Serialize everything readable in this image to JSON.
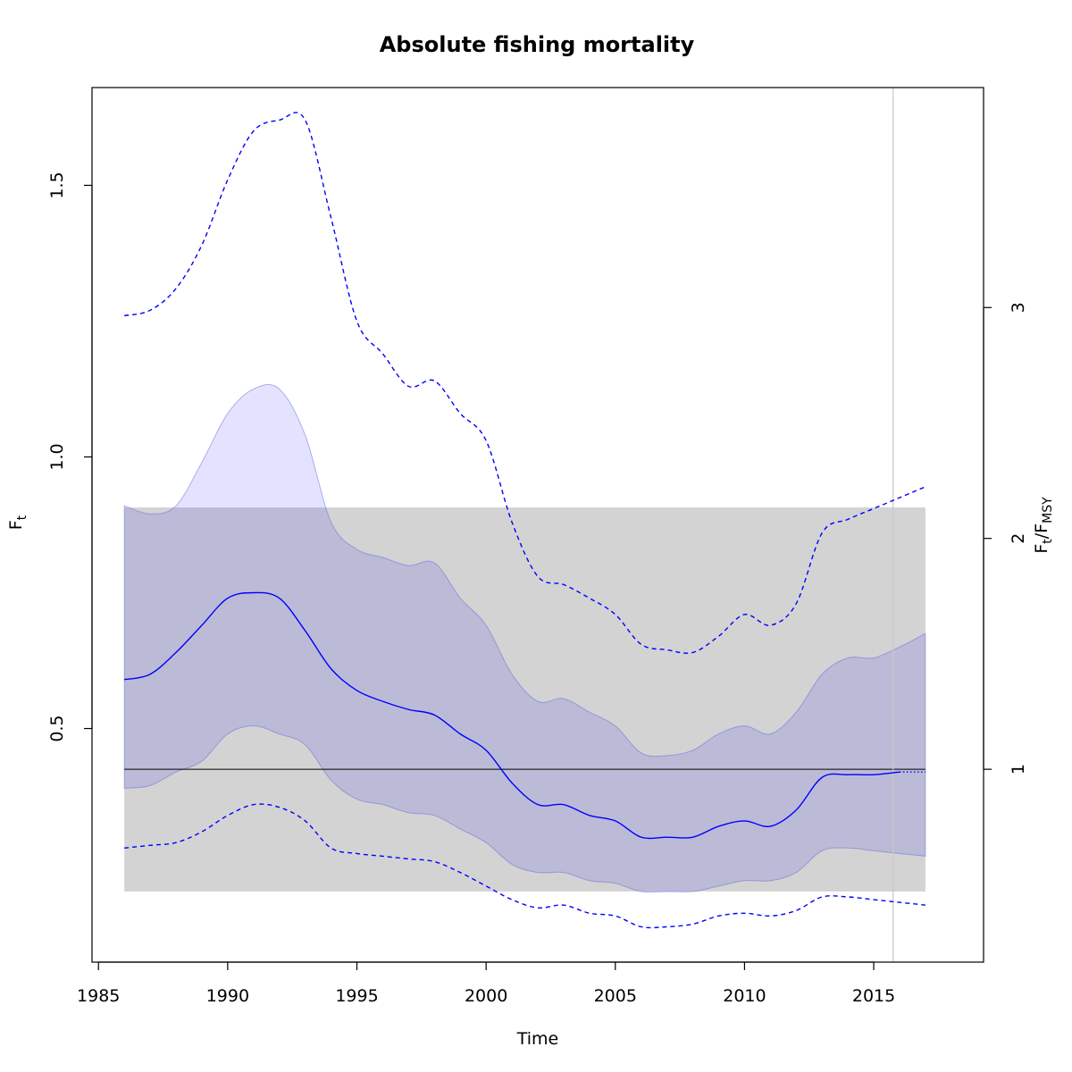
{
  "chart_data": {
    "type": "line",
    "title": "Absolute fishing mortality",
    "xlabel": "Time",
    "ylabel_base": "F",
    "ylabel_sub": "t",
    "y2label_base": "F",
    "y2label_sub1": "t",
    "y2label_sep": "/F",
    "y2label_sub2": "MSY",
    "xlim": [
      1984.75,
      2019.25
    ],
    "ylim": [
      0.07,
      1.68
    ],
    "x_ticks": [
      {
        "value": 1985,
        "label": "1985"
      },
      {
        "value": 1990,
        "label": "1990"
      },
      {
        "value": 1995,
        "label": "1995"
      },
      {
        "value": 2000,
        "label": "2000"
      },
      {
        "value": 2005,
        "label": "2005"
      },
      {
        "value": 2010,
        "label": "2010"
      },
      {
        "value": 2015,
        "label": "2015"
      }
    ],
    "y_ticks": [
      {
        "value": 0.5,
        "label": "0.5"
      },
      {
        "value": 1.0,
        "label": "1.0"
      },
      {
        "value": 1.5,
        "label": "1.5"
      }
    ],
    "y2_ticks": [
      {
        "value": 1,
        "label": "1"
      },
      {
        "value": 2,
        "label": "2"
      },
      {
        "value": 3,
        "label": "3"
      }
    ],
    "fmsy": 0.425,
    "fmsy_band": {
      "x": [
        1986,
        2017
      ],
      "lower": 0.2,
      "upper": 0.907,
      "color": "#d3d3d3"
    },
    "vline_x": 2015.75,
    "last_observed_x": 2016,
    "x": [
      1986,
      1987,
      1988,
      1989,
      1990,
      1991,
      1992,
      1993,
      1994,
      1995,
      1996,
      1997,
      1998,
      1999,
      2000,
      2001,
      2002,
      2003,
      2004,
      2005,
      2006,
      2007,
      2008,
      2009,
      2010,
      2011,
      2012,
      2013,
      2014,
      2015,
      2016,
      2017
    ],
    "series": [
      {
        "name": "F",
        "color": "#0000ff",
        "values": [
          0.59,
          0.6,
          0.64,
          0.69,
          0.74,
          0.75,
          0.74,
          0.68,
          0.61,
          0.57,
          0.55,
          0.535,
          0.525,
          0.49,
          0.46,
          0.4,
          0.36,
          0.36,
          0.34,
          0.33,
          0.3,
          0.3,
          0.3,
          0.32,
          0.33,
          0.32,
          0.35,
          0.41,
          0.415,
          0.415,
          0.42,
          0.42
        ]
      },
      {
        "name": "F lower CI",
        "color": "#0000ff",
        "values": [
          0.28,
          0.285,
          0.29,
          0.31,
          0.34,
          0.36,
          0.355,
          0.33,
          0.28,
          0.27,
          0.265,
          0.26,
          0.255,
          0.235,
          0.21,
          0.185,
          0.17,
          0.175,
          0.16,
          0.155,
          0.135,
          0.135,
          0.14,
          0.155,
          0.16,
          0.155,
          0.165,
          0.19,
          0.19,
          0.185,
          0.18,
          0.175
        ]
      },
      {
        "name": "F upper CI",
        "color": "#0000ff",
        "values": [
          1.26,
          1.27,
          1.31,
          1.39,
          1.51,
          1.6,
          1.62,
          1.62,
          1.44,
          1.25,
          1.19,
          1.13,
          1.14,
          1.08,
          1.03,
          0.88,
          0.78,
          0.765,
          0.74,
          0.71,
          0.655,
          0.645,
          0.64,
          0.67,
          0.71,
          0.69,
          0.73,
          0.86,
          0.885,
          0.905,
          0.925,
          0.945
        ]
      }
    ],
    "ci_band_fill": "rgba(0,0,255,0.11)",
    "ci_band_lower": [
      0.39,
      0.395,
      0.42,
      0.44,
      0.49,
      0.505,
      0.49,
      0.47,
      0.405,
      0.37,
      0.36,
      0.345,
      0.34,
      0.315,
      0.29,
      0.25,
      0.235,
      0.235,
      0.22,
      0.215,
      0.2,
      0.2,
      0.2,
      0.21,
      0.22,
      0.22,
      0.235,
      0.275,
      0.28,
      0.275,
      0.27,
      0.265
    ],
    "ci_band_upper": [
      0.91,
      0.895,
      0.91,
      0.99,
      1.08,
      1.125,
      1.125,
      1.04,
      0.88,
      0.83,
      0.815,
      0.8,
      0.805,
      0.74,
      0.69,
      0.6,
      0.55,
      0.555,
      0.53,
      0.505,
      0.455,
      0.45,
      0.46,
      0.49,
      0.505,
      0.49,
      0.53,
      0.6,
      0.63,
      0.63,
      0.65,
      0.675
    ]
  }
}
